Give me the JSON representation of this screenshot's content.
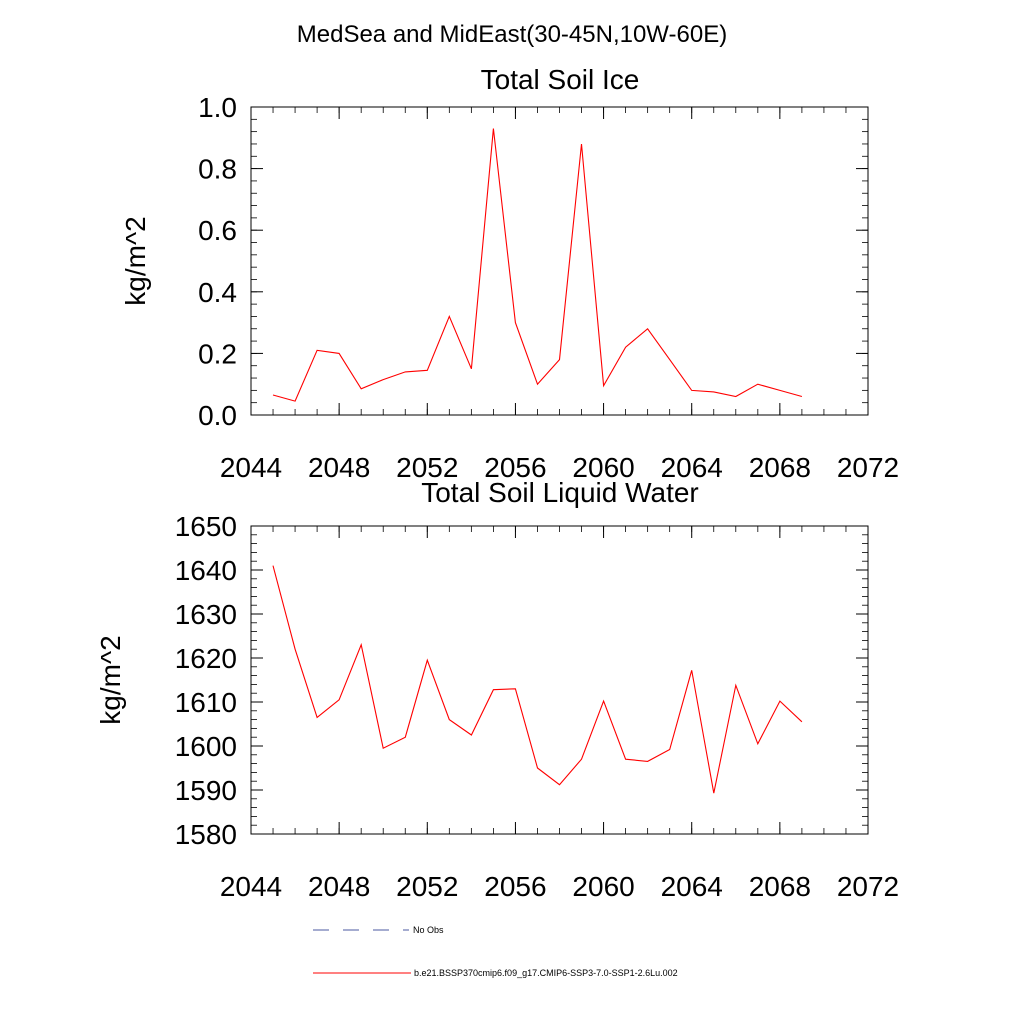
{
  "figure_title": "MedSea and MidEast(30-45N,10W-60E)",
  "colors": {
    "series": "#ff0000",
    "obs": "#4b5aa0",
    "axis": "#000000"
  },
  "legend": {
    "obs_label": "No Obs",
    "series_label": "b.e21.BSSP370cmip6.f09_g17.CMIP6-SSP3-7.0-SSP1-2.6Lu.002"
  },
  "chart_data": [
    {
      "type": "line",
      "title": "Total Soil Ice",
      "xlabel": "",
      "ylabel": "kg/m^2",
      "xlim": [
        2044,
        2072
      ],
      "ylim": [
        0.0,
        1.0
      ],
      "x_ticks": [
        2044,
        2048,
        2052,
        2056,
        2060,
        2064,
        2068,
        2072
      ],
      "x_tick_labels": [
        "2044",
        "2048",
        "2052",
        "2056",
        "2060",
        "2064",
        "2068",
        "2072"
      ],
      "x_minor_step": 1,
      "y_ticks": [
        0.0,
        0.2,
        0.4,
        0.6,
        0.8,
        1.0
      ],
      "y_tick_labels": [
        "0.0",
        "0.2",
        "0.4",
        "0.6",
        "0.8",
        "1.0"
      ],
      "y_minor_step": 0.04,
      "grid": false,
      "series": [
        {
          "x": [
            2045,
            2046,
            2047,
            2048,
            2049,
            2050,
            2051,
            2052,
            2053,
            2054,
            2055,
            2056,
            2057,
            2058,
            2059,
            2060,
            2061,
            2062,
            2063,
            2064,
            2065,
            2066,
            2067,
            2068,
            2069
          ],
          "values": [
            0.065,
            0.045,
            0.21,
            0.2,
            0.085,
            0.115,
            0.14,
            0.145,
            0.32,
            0.15,
            0.93,
            0.3,
            0.1,
            0.18,
            0.88,
            0.095,
            0.22,
            0.28,
            0.18,
            0.08,
            0.075,
            0.06,
            0.1,
            0.08,
            0.06
          ]
        }
      ]
    },
    {
      "type": "line",
      "title": "Total Soil Liquid Water",
      "xlabel": "",
      "ylabel": "kg/m^2",
      "xlim": [
        2044,
        2072
      ],
      "ylim": [
        1580,
        1650
      ],
      "x_ticks": [
        2044,
        2048,
        2052,
        2056,
        2060,
        2064,
        2068,
        2072
      ],
      "x_tick_labels": [
        "2044",
        "2048",
        "2052",
        "2056",
        "2060",
        "2064",
        "2068",
        "2072"
      ],
      "x_minor_step": 1,
      "y_ticks": [
        1580,
        1590,
        1600,
        1610,
        1620,
        1630,
        1640,
        1650
      ],
      "y_tick_labels": [
        "1580",
        "1590",
        "1600",
        "1610",
        "1620",
        "1630",
        "1640",
        "1650"
      ],
      "y_minor_step": 2,
      "grid": false,
      "series": [
        {
          "x": [
            2045,
            2046,
            2047,
            2048,
            2049,
            2050,
            2051,
            2052,
            2053,
            2054,
            2055,
            2056,
            2057,
            2058,
            2059,
            2060,
            2061,
            2062,
            2063,
            2064,
            2065,
            2066,
            2067,
            2068,
            2069
          ],
          "values": [
            1641,
            1622,
            1606.5,
            1610.5,
            1623,
            1599.5,
            1602,
            1619.5,
            1606,
            1602.5,
            1612.8,
            1613,
            1595,
            1591.2,
            1597,
            1610.2,
            1597,
            1596.5,
            1599.2,
            1617.2,
            1589.3,
            1613.8,
            1600.5,
            1610.2,
            1605.5
          ]
        }
      ]
    }
  ]
}
